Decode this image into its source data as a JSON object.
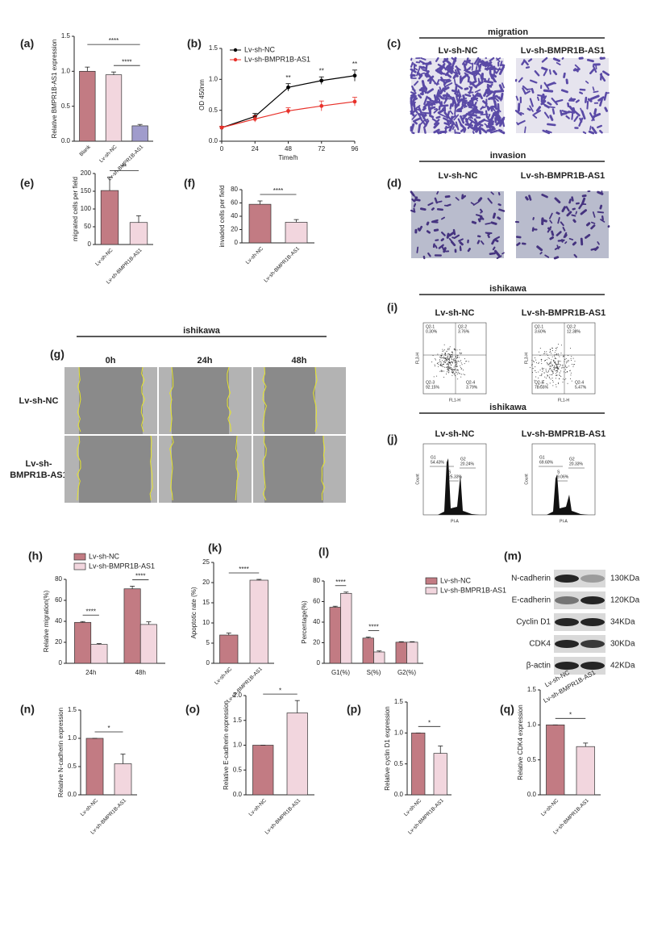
{
  "chart_data": [
    {
      "type": "bar",
      "label": "(a)",
      "ylabel": "Relative BMPR1B-AS1 expression",
      "categories": [
        "Blank",
        "Lv-sh-NC",
        "Lv-sh-BMPR1B-AS1"
      ],
      "values": [
        1.0,
        0.95,
        0.22
      ],
      "errors": [
        0.06,
        0.04,
        0.02
      ],
      "colors": [
        "#c27b83",
        "#f2d6de",
        "#a09ccc"
      ],
      "ylim": [
        0,
        1.5
      ],
      "yticks": [
        {
          "value": 0,
          "label": "0.0"
        },
        {
          "value": 0.5,
          "label": "0.5"
        },
        {
          "value": 1,
          "label": "1.0"
        },
        {
          "value": 1.5,
          "label": "1.5"
        }
      ],
      "annotations": [
        "****",
        "****"
      ]
    },
    {
      "type": "line",
      "label": "(b)",
      "xlabel": "Time/h",
      "ylabel": "OD 450nm",
      "x": [
        0,
        24,
        48,
        72,
        96
      ],
      "xlim": [
        0,
        96
      ],
      "xticks": [
        0,
        24,
        48,
        72,
        96
      ],
      "ylim": [
        0,
        1.5
      ],
      "yticks": [
        {
          "value": 0,
          "label": "0.0"
        },
        {
          "value": 0.5,
          "label": "0.5"
        },
        {
          "value": 1,
          "label": "1.0"
        },
        {
          "value": 1.5,
          "label": "1.5"
        }
      ],
      "series": [
        {
          "name": "Lv-sh-NC",
          "color": "#000000",
          "values": [
            0.22,
            0.4,
            0.87,
            0.98,
            1.06
          ],
          "errors": [
            0.02,
            0.05,
            0.06,
            0.06,
            0.09
          ]
        },
        {
          "name": "Lv-sh-BMPR1B-AS1",
          "color": "#e8312a",
          "values": [
            0.22,
            0.36,
            0.49,
            0.57,
            0.64
          ],
          "errors": [
            0.02,
            0.05,
            0.05,
            0.08,
            0.07
          ]
        }
      ],
      "annotations": [
        "**",
        "**",
        "**"
      ]
    },
    {
      "type": "bar",
      "label": "(e)",
      "ylabel": "migrated cells per field",
      "categories": [
        "Lv-sh-NC",
        "Lv-sh-BMPR1B-AS1"
      ],
      "values": [
        152,
        62
      ],
      "errors": [
        38,
        19
      ],
      "colors": [
        "#c27b83",
        "#f2d6de"
      ],
      "ylim": [
        0,
        200
      ],
      "yticks": [
        0,
        50,
        100,
        150,
        200
      ],
      "annotations": [
        "**"
      ]
    },
    {
      "type": "bar",
      "label": "(f)",
      "ylabel": "invaded cells per field",
      "categories": [
        "Lv-sh-NC",
        "Lv-sh-BMPR1B-AS1"
      ],
      "values": [
        58,
        31
      ],
      "errors": [
        5,
        4
      ],
      "colors": [
        "#c27b83",
        "#f2d6de"
      ],
      "ylim": [
        0,
        80
      ],
      "yticks": [
        0,
        20,
        40,
        60,
        80
      ],
      "annotations": [
        "****"
      ]
    },
    {
      "type": "bar",
      "label": "(h)",
      "ylabel": "Relative migration(%)",
      "categories": [
        "24h",
        "48h"
      ],
      "series": [
        {
          "name": "Lv-sh-NC",
          "color": "#c27b83",
          "values": [
            39,
            71
          ],
          "errors": [
            0.8,
            2.5
          ]
        },
        {
          "name": "Lv-sh-BMPR1B-AS1",
          "color": "#f2d6de",
          "values": [
            18,
            37
          ],
          "errors": [
            0.8,
            2.5
          ]
        }
      ],
      "ylim": [
        0,
        80
      ],
      "yticks": [
        0,
        20,
        40,
        60,
        80
      ],
      "annotations": [
        "****",
        "****"
      ]
    },
    {
      "type": "bar",
      "label": "(k)",
      "ylabel": "Apoptotic rate (%)",
      "categories": [
        "Lv-sh-NC",
        "Lv-sh-BMPR1B-AS1"
      ],
      "values": [
        7,
        20.6
      ],
      "errors": [
        0.5,
        0.2
      ],
      "colors": [
        "#c27b83",
        "#f2d6de"
      ],
      "ylim": [
        0,
        25
      ],
      "yticks": [
        0,
        5,
        10,
        15,
        20,
        25
      ],
      "annotations": [
        "****"
      ]
    },
    {
      "type": "bar",
      "label": "(l)",
      "ylabel": "Percentage(%)",
      "categories": [
        "G1(%)",
        "S(%)",
        "G2(%)"
      ],
      "series": [
        {
          "name": "Lv-sh-NC",
          "color": "#c27b83",
          "values": [
            54.5,
            24.5,
            20.5
          ],
          "errors": [
            1,
            1,
            0.5
          ]
        },
        {
          "name": "Lv-sh-BMPR1B-AS1",
          "color": "#f2d6de",
          "values": [
            68,
            11,
            20.5
          ],
          "errors": [
            1.2,
            1,
            0.5
          ]
        }
      ],
      "ylim": [
        0,
        80
      ],
      "yticks": [
        0,
        20,
        40,
        60,
        80
      ],
      "annotations": [
        "****",
        "****"
      ]
    },
    {
      "type": "bar",
      "label": "(n)",
      "ylabel": "Relative N-cadherin expression",
      "categories": [
        "Lv-sh-NC",
        "Lv-sh-BMPR1B-AS1"
      ],
      "values": [
        1.0,
        0.55
      ],
      "errors": [
        0,
        0.17
      ],
      "colors": [
        "#c27b83",
        "#f2d6de"
      ],
      "ylim": [
        0,
        1.5
      ],
      "yticks": [
        {
          "value": 0,
          "label": "0.0"
        },
        {
          "value": 0.5,
          "label": "0.5"
        },
        {
          "value": 1,
          "label": "1.0"
        },
        {
          "value": 1.5,
          "label": "1.5"
        }
      ],
      "annotations": [
        "*"
      ]
    },
    {
      "type": "bar",
      "label": "(o)",
      "ylabel": "Relative E-cadherin expression",
      "categories": [
        "Lv-sh-NC",
        "Lv-sh-BMPR1B-AS1"
      ],
      "values": [
        1.0,
        1.65
      ],
      "errors": [
        0,
        0.25
      ],
      "colors": [
        "#c27b83",
        "#f2d6de"
      ],
      "ylim": [
        0,
        2
      ],
      "yticks": [
        {
          "value": 0,
          "label": "0.0"
        },
        {
          "value": 0.5,
          "label": "0.5"
        },
        {
          "value": 1,
          "label": "1.0"
        },
        {
          "value": 1.5,
          "label": "1.5"
        },
        {
          "value": 2,
          "label": "2.0"
        }
      ],
      "annotations": [
        "*"
      ]
    },
    {
      "type": "bar",
      "label": "(p)",
      "ylabel": "Relative cyclin D1 expression",
      "categories": [
        "Lv-sh-NC",
        "Lv-sh-BMPR1B-AS1"
      ],
      "values": [
        1.0,
        0.67
      ],
      "errors": [
        0,
        0.12
      ],
      "colors": [
        "#c27b83",
        "#f2d6de"
      ],
      "ylim": [
        0,
        1.5
      ],
      "yticks": [
        {
          "value": 0,
          "label": "0.0"
        },
        {
          "value": 0.5,
          "label": "0.5"
        },
        {
          "value": 1,
          "label": "1.0"
        },
        {
          "value": 1.5,
          "label": "1.5"
        }
      ],
      "annotations": [
        "*"
      ]
    },
    {
      "type": "bar",
      "label": "(q)",
      "ylabel": "Relative CDK4 expression",
      "categories": [
        "Lv-sh-NC",
        "Lv-sh-BMPR1B-AS1"
      ],
      "values": [
        1.0,
        0.69
      ],
      "errors": [
        0,
        0.05
      ],
      "colors": [
        "#c27b83",
        "#f2d6de"
      ],
      "ylim": [
        0,
        1.5
      ],
      "yticks": [
        {
          "value": 0,
          "label": "0.0"
        },
        {
          "value": 0.5,
          "label": "0.5"
        },
        {
          "value": 1,
          "label": "1.0"
        },
        {
          "value": 1.5,
          "label": "1.5"
        }
      ],
      "annotations": [
        "*"
      ]
    }
  ],
  "images": {
    "c": {
      "label": "(c)",
      "title": "migration",
      "columns": [
        "Lv-sh-NC",
        "Lv-sh-BMPR1B-AS1"
      ]
    },
    "d": {
      "label": "(d)",
      "title": "invasion",
      "columns": [
        "Lv-sh-NC",
        "Lv-sh-BMPR1B-AS1"
      ]
    },
    "g": {
      "label": "(g)",
      "title": "ishikawa",
      "columns": [
        "0h",
        "24h",
        "48h"
      ],
      "rows": [
        [
          "Lv-sh-NC"
        ],
        [
          "Lv-sh-",
          "BMPR1B-AS1"
        ]
      ]
    },
    "i": {
      "label": "(i)",
      "title": "ishikawa",
      "xlabel": "FL1-H",
      "ylabel": "FL3-H",
      "plots": [
        {
          "name": "Lv-sh-NC",
          "quadrants": [
            [
              "Q2-1",
              "0.30%"
            ],
            [
              "Q2-2",
              "3.76%"
            ],
            [
              "Q2-3",
              "92.15%"
            ],
            [
              "Q2-4",
              "3.79%"
            ]
          ]
        },
        {
          "name": "Lv-sh-BMPR1B-AS1",
          "quadrants": [
            [
              "Q2-1",
              "3.60%"
            ],
            [
              "Q2-2",
              "12.38%"
            ],
            [
              "Q2-3",
              "78.55%"
            ],
            [
              "Q2-4",
              "5.47%"
            ]
          ]
        }
      ]
    },
    "j": {
      "label": "(j)",
      "title": "ishikawa",
      "xlabel": "PI-A",
      "ylabel": "Count",
      "plots": [
        {
          "name": "Lv-sh-NC",
          "gates": [
            [
              "G1",
              "54.43%"
            ],
            [
              "S",
              "25.33%"
            ],
            [
              "G2",
              "20.24%"
            ]
          ]
        },
        {
          "name": "Lv-sh-BMPR1B-AS1",
          "gates": [
            [
              "G1",
              "69.60%"
            ],
            [
              "S",
              "9.06%"
            ],
            [
              "G2",
              "20.33%"
            ]
          ]
        }
      ]
    },
    "m": {
      "label": "(m)",
      "bands": [
        [
          "N-cadherin",
          "130KDa"
        ],
        [
          "E-cadherin",
          "120KDa"
        ],
        [
          "Cyclin D1",
          "34KDa"
        ],
        [
          "CDK4",
          "30KDa"
        ],
        [
          "β-actin",
          "42KDa"
        ]
      ],
      "lanes": [
        "Lv-sh-NC",
        "Lv-sh-BMPR1B-AS1"
      ]
    }
  }
}
